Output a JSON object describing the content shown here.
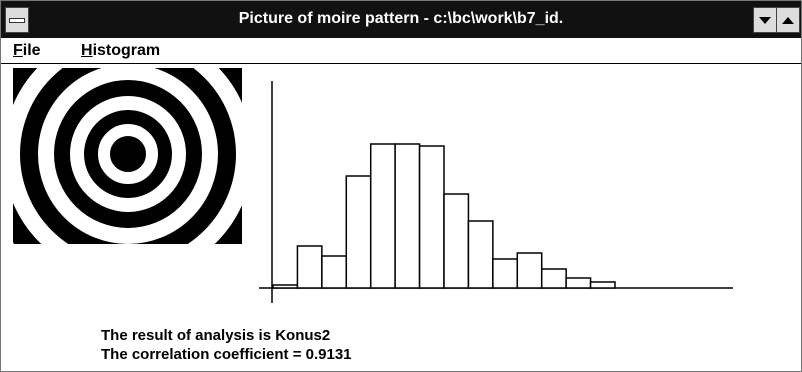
{
  "window": {
    "title": "Picture of moire pattern - c:\\bc\\work\\b7_id."
  },
  "menu": [
    "File",
    "Histogram"
  ],
  "chart_data": {
    "type": "bar",
    "values": [
      3,
      42,
      32,
      112,
      144,
      144,
      142,
      94,
      67,
      29,
      35,
      19,
      10,
      6
    ],
    "ylim": [
      0,
      207
    ],
    "color": "#ffffff"
  },
  "result": [
    "The result of analysis is Konus2",
    "The correlation coefficient = 0.9131"
  ]
}
